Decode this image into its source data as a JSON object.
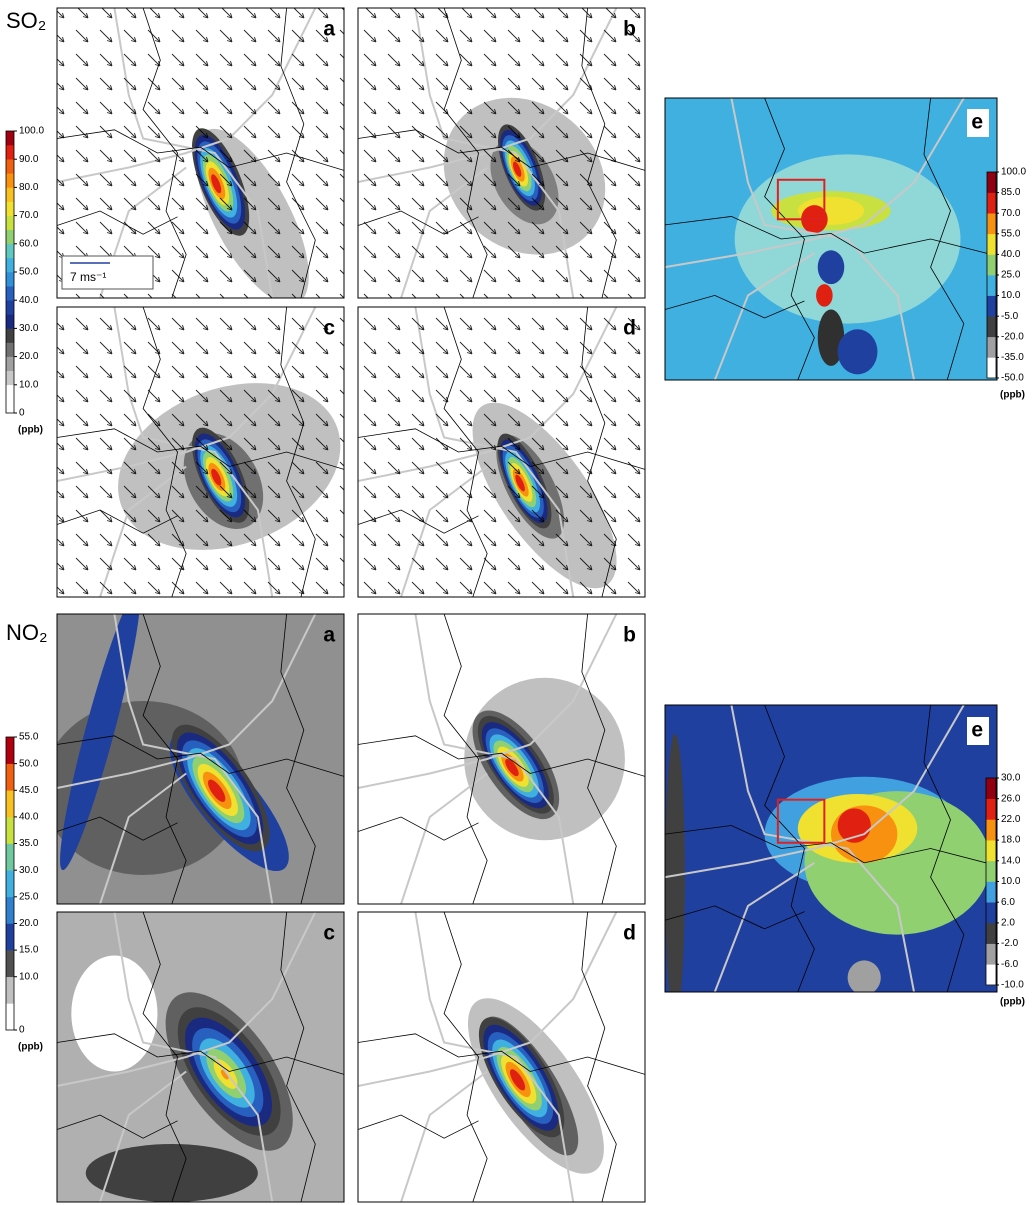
{
  "so2": {
    "title": "SO₂",
    "panels": [
      "a",
      "b",
      "c",
      "d"
    ],
    "wind_scale": "7 ms⁻¹",
    "colorbar": {
      "lim": [
        0,
        100
      ],
      "unit": "(ppb)",
      "colors": [
        "#ffffff",
        "#ffffff",
        "#c8c8c8",
        "#a0a0a0",
        "#707070",
        "#404040",
        "#1a2a80",
        "#2040a0",
        "#2860c0",
        "#3090d8",
        "#40b0e0",
        "#60c8c0",
        "#90d070",
        "#c8e040",
        "#f0e030",
        "#f8c020",
        "#f89010",
        "#f06010",
        "#e02010",
        "#a00010"
      ],
      "ticks": [
        0,
        {
          "value": 10,
          "label": "10.0"
        },
        {
          "value": 20,
          "label": "20.0"
        },
        {
          "value": 30,
          "label": "30.0"
        },
        {
          "value": 40,
          "label": "40.0"
        },
        {
          "value": 50,
          "label": "50.0"
        },
        {
          "value": 60,
          "label": "60.0"
        },
        {
          "value": 70,
          "label": "70.0"
        },
        {
          "value": 80,
          "label": "80.0"
        },
        {
          "value": 90,
          "label": "90.0"
        },
        {
          "value": 100,
          "label": "100.0"
        }
      ]
    },
    "diff_panel": "e",
    "diff_colorbar": {
      "lim": [
        -50,
        100
      ],
      "unit": "(ppb)",
      "colors": [
        "#ffffff",
        "#a0a0a0",
        "#404040",
        "#2040a0",
        "#40b0e0",
        "#90d070",
        "#f0e030",
        "#f89010",
        "#e02010",
        "#900010"
      ],
      "ticks": [
        {
          "value": -50,
          "label": "-50.0"
        },
        {
          "value": -35,
          "label": "-35.0"
        },
        {
          "value": -20,
          "label": "-20.0"
        },
        {
          "value": -5,
          "label": "-5.0"
        },
        {
          "value": 10,
          "label": "10.0"
        },
        {
          "value": 25,
          "label": "25.0"
        },
        {
          "value": 40,
          "label": "40.0"
        },
        {
          "value": 55,
          "label": "55.0"
        },
        {
          "value": 70,
          "label": "70.0"
        },
        {
          "value": 85,
          "label": "85.0"
        },
        {
          "value": 100,
          "label": "100.0"
        }
      ]
    }
  },
  "no2": {
    "title": "NO₂",
    "panels": [
      "a",
      "b",
      "c",
      "d"
    ],
    "colorbar": {
      "lim": [
        0,
        55
      ],
      "unit": "(ppb)",
      "colors": [
        "#ffffff",
        "#c0c0c0",
        "#505050",
        "#2040a0",
        "#3080d0",
        "#40b0e0",
        "#70c8a0",
        "#c8e040",
        "#f8c020",
        "#f06010",
        "#b00010"
      ],
      "ticks": [
        0,
        {
          "value": 10,
          "label": "10.0"
        },
        {
          "value": 15,
          "label": "15.0"
        },
        {
          "value": 20,
          "label": "20.0"
        },
        {
          "value": 25,
          "label": "25.0"
        },
        {
          "value": 30,
          "label": "30.0"
        },
        {
          "value": 35,
          "label": "35.0"
        },
        {
          "value": 40,
          "label": "40.0"
        },
        {
          "value": 45,
          "label": "45.0"
        },
        {
          "value": 50,
          "label": "50.0"
        },
        {
          "value": 55,
          "label": "55.0"
        }
      ]
    },
    "diff_panel": "e",
    "diff_colorbar": {
      "lim": [
        -10,
        30
      ],
      "unit": "(ppb)",
      "colors": [
        "#ffffff",
        "#a0a0a0",
        "#404040",
        "#2040a0",
        "#40a0e0",
        "#90d070",
        "#f0e030",
        "#f89010",
        "#e02010",
        "#900010"
      ],
      "ticks": [
        {
          "value": -10,
          "label": "-10.0"
        },
        {
          "value": -6,
          "label": "-6.0"
        },
        {
          "value": -2,
          "label": "-2.0"
        },
        {
          "value": 2,
          "label": "2.0"
        },
        {
          "value": 6,
          "label": "6.0"
        },
        {
          "value": 10,
          "label": "10.0"
        },
        {
          "value": 14,
          "label": "14.0"
        },
        {
          "value": 18,
          "label": "18.0"
        },
        {
          "value": 22,
          "label": "22.0"
        },
        {
          "value": 26,
          "label": "26.0"
        },
        {
          "value": 30,
          "label": "30.0"
        }
      ]
    }
  }
}
